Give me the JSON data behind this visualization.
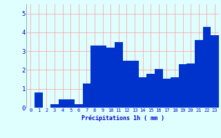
{
  "bar_values": [
    0.0,
    0.8,
    0.0,
    0.2,
    0.45,
    0.45,
    0.2,
    1.3,
    3.3,
    3.3,
    3.2,
    3.5,
    2.5,
    2.5,
    1.6,
    1.8,
    2.05,
    1.55,
    1.6,
    2.3,
    2.35,
    3.6,
    4.3,
    3.85
  ],
  "bar_color": "#0033CC",
  "bg_color": "#DFFFFF",
  "grid_color": "#FF9999",
  "text_color": "#0000CC",
  "xlabel": "Précipitations 1h ( mm )",
  "yticks": [
    0,
    1,
    2,
    3,
    4,
    5
  ],
  "ylim": [
    0,
    5.5
  ],
  "figwidth": 3.2,
  "figheight": 2.0,
  "dpi": 100
}
